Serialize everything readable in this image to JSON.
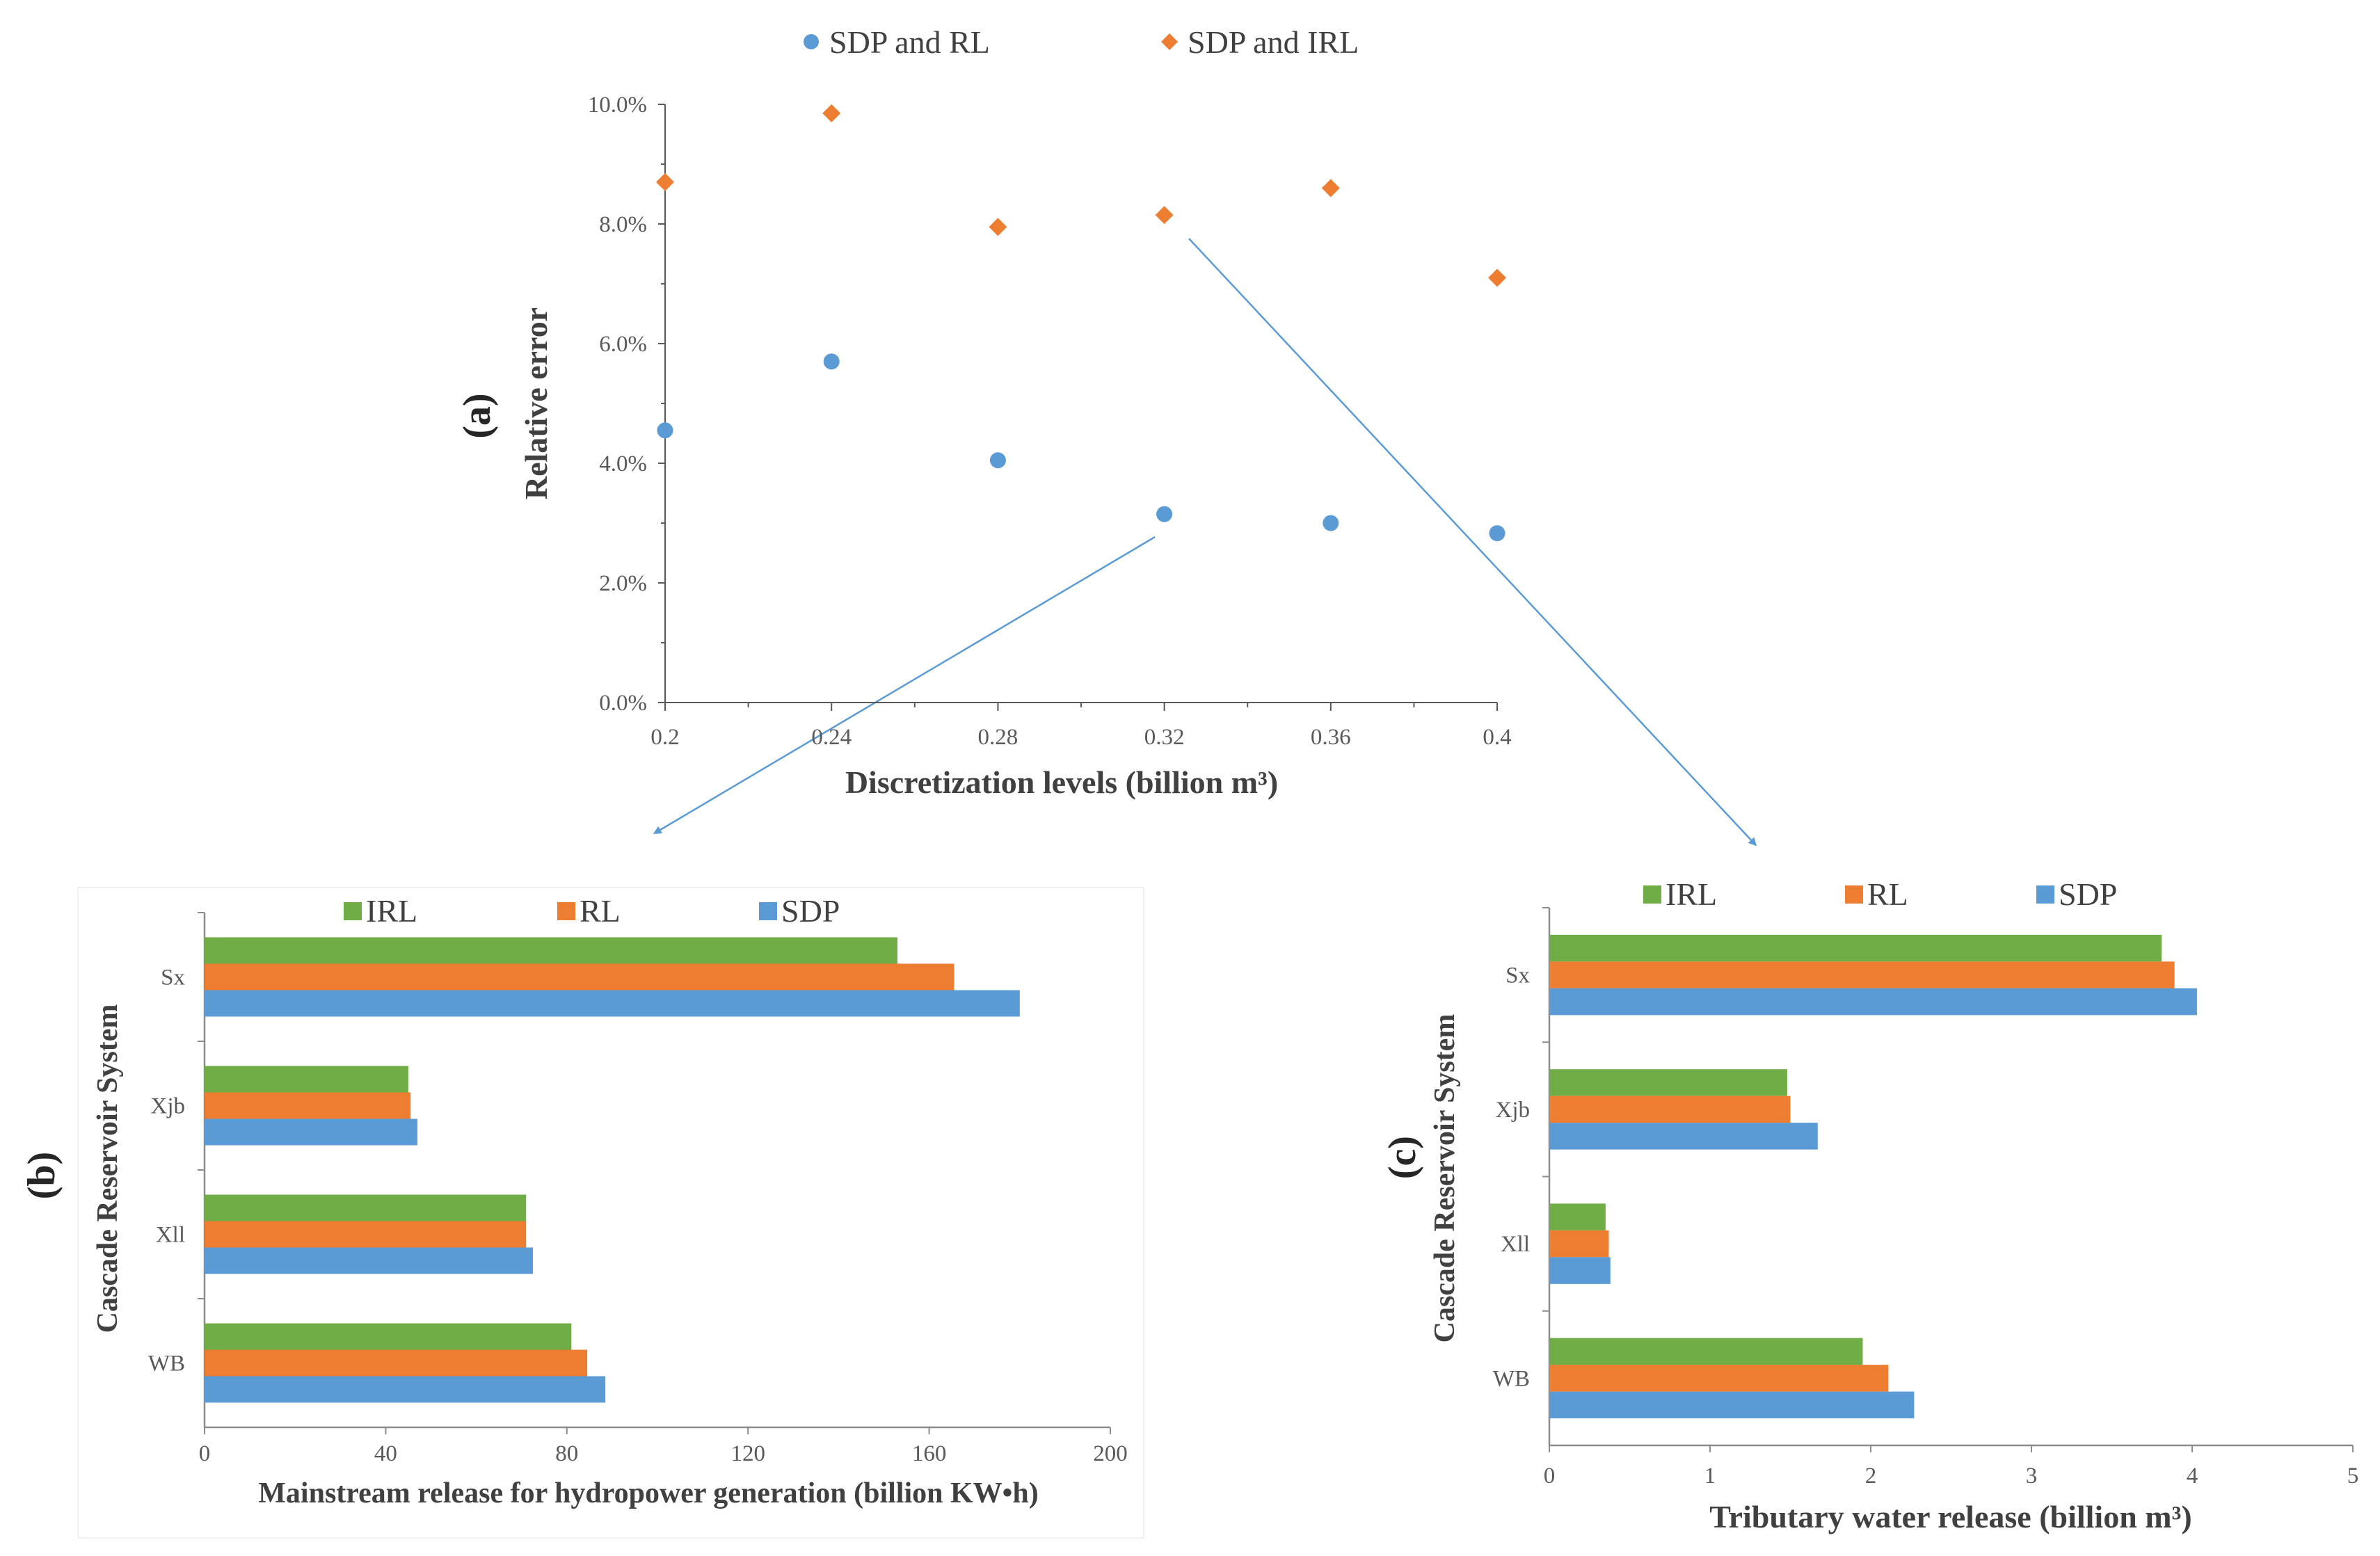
{
  "chart_data": [
    {
      "id": "a",
      "panel_label": "(a)",
      "type": "scatter",
      "xlabel": "Discretization levels (billion m³)",
      "ylabel": "Relative error",
      "xlim": [
        0.2,
        0.4
      ],
      "ylim": [
        0.0,
        10.0
      ],
      "x_ticks": [
        "0.2",
        "0.24",
        "0.28",
        "0.32",
        "0.36",
        "0.4"
      ],
      "y_ticks": [
        "0.0%",
        "2.0%",
        "4.0%",
        "6.0%",
        "8.0%",
        "10.0%"
      ],
      "legend_position": "top",
      "series": [
        {
          "name": "SDP and RL",
          "marker": "circle",
          "color": "#5B9BD5",
          "x": [
            0.2,
            0.24,
            0.28,
            0.32,
            0.36,
            0.4
          ],
          "y": [
            4.55,
            5.7,
            4.05,
            3.15,
            3.0,
            2.83
          ]
        },
        {
          "name": "SDP and IRL",
          "marker": "diamond",
          "color": "#ED7D31",
          "x": [
            0.2,
            0.24,
            0.28,
            0.32,
            0.36,
            0.4
          ],
          "y": [
            8.7,
            9.85,
            7.95,
            8.15,
            8.6,
            7.1
          ]
        }
      ]
    },
    {
      "id": "b",
      "panel_label": "(b)",
      "type": "bar",
      "orientation": "horizontal",
      "xlabel": "Mainstream release for hydropower generation (billion KW•h)",
      "ylabel": "Cascade Reservoir System",
      "categories": [
        "Sx",
        "Xjb",
        "Xll",
        "WB"
      ],
      "xlim": [
        0,
        200
      ],
      "x_ticks": [
        "0",
        "40",
        "80",
        "120",
        "160",
        "200"
      ],
      "legend_position": "top",
      "series": [
        {
          "name": "IRL",
          "color": "#70AD47",
          "values": [
            153,
            45,
            71,
            81
          ]
        },
        {
          "name": "RL",
          "color": "#ED7D31",
          "values": [
            165.5,
            45.5,
            71,
            84.5
          ]
        },
        {
          "name": "SDP",
          "color": "#5B9BD5",
          "values": [
            180,
            47,
            72.5,
            88.5
          ]
        }
      ]
    },
    {
      "id": "c",
      "panel_label": "(c)",
      "type": "bar",
      "orientation": "horizontal",
      "xlabel": "Tributary water release (billion m³)",
      "ylabel": "Cascade Reservoir System",
      "categories": [
        "Sx",
        "Xjb",
        "Xll",
        "WB"
      ],
      "xlim": [
        0,
        5
      ],
      "x_ticks": [
        "0",
        "1",
        "2",
        "3",
        "4",
        "5"
      ],
      "legend_position": "top",
      "series": [
        {
          "name": "IRL",
          "color": "#70AD47",
          "values": [
            3.81,
            1.48,
            0.35,
            1.95
          ]
        },
        {
          "name": "RL",
          "color": "#ED7D31",
          "values": [
            3.89,
            1.5,
            0.37,
            2.11
          ]
        },
        {
          "name": "SDP",
          "color": "#5B9BD5",
          "values": [
            4.03,
            1.67,
            0.38,
            2.27
          ]
        }
      ]
    }
  ]
}
